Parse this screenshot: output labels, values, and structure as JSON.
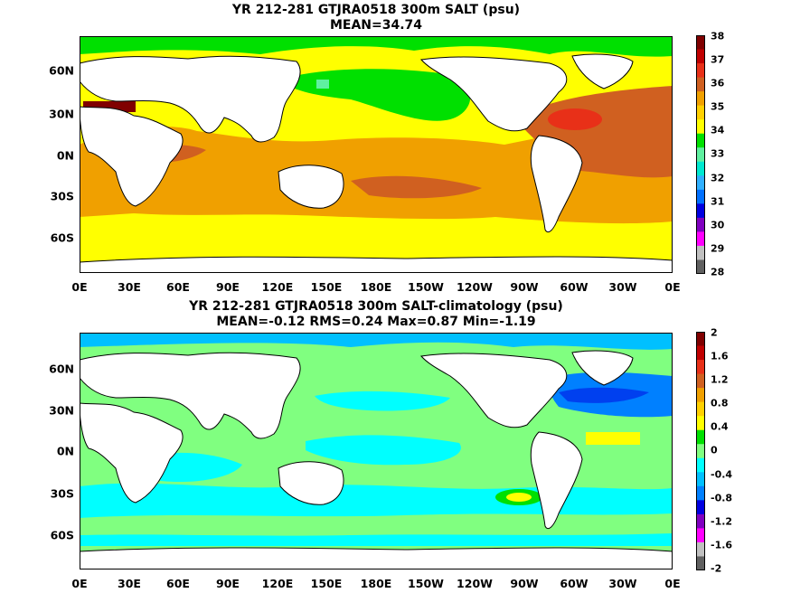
{
  "panels": [
    {
      "title_line1": "YR 212-281 GTJRA0518 300m SALT (psu)",
      "title_line2": "MEAN=34.74",
      "lat_labels": [
        "60N",
        "30N",
        "0N",
        "30S",
        "60S"
      ],
      "lon_labels": [
        "0E",
        "30E",
        "60E",
        "90E",
        "120E",
        "150E",
        "180E",
        "150W",
        "120W",
        "90W",
        "60W",
        "30W",
        "0E"
      ],
      "colorbar_labels": [
        "38",
        "37",
        "36",
        "35",
        "34",
        "33",
        "32",
        "31",
        "30",
        "29",
        "28"
      ],
      "colorbar_colors": [
        "#800000",
        "#c00000",
        "#e83018",
        "#d06020",
        "#f0a000",
        "#ffd000",
        "#ffff00",
        "#00e000",
        "#60f0a0",
        "#00e8d0",
        "#30b0ff",
        "#0070ff",
        "#0000e0",
        "#8000c0",
        "#ff00ff",
        "#c0c0c0",
        "#606060"
      ]
    },
    {
      "title_line1": "YR 212-281 GTJRA0518 300m SALT-climatology (psu)",
      "title_line2": "MEAN=-0.12   RMS=0.24   Max=0.87   Min=-1.19",
      "lat_labels": [
        "60N",
        "30N",
        "0N",
        "30S",
        "60S"
      ],
      "lon_labels": [
        "0E",
        "30E",
        "60E",
        "90E",
        "120E",
        "150E",
        "180E",
        "150W",
        "120W",
        "90W",
        "60W",
        "30W",
        "0E"
      ],
      "colorbar_labels": [
        "2",
        "1.6",
        "1.2",
        "0.8",
        "0.4",
        "0",
        "-0.4",
        "-0.8",
        "-1.2",
        "-1.6",
        "-2"
      ],
      "colorbar_colors": [
        "#800000",
        "#c00000",
        "#e83018",
        "#d06020",
        "#f0a000",
        "#ffd000",
        "#ffff00",
        "#00e000",
        "#80ff80",
        "#00ffff",
        "#00c0ff",
        "#0080ff",
        "#0000e0",
        "#8000c0",
        "#ff00ff",
        "#c0c0c0",
        "#606060"
      ]
    }
  ],
  "map_colors": {
    "top_background": "#ffff00",
    "top_orange": "#f0a000",
    "top_darkorange": "#d06020",
    "top_red": "#e83018",
    "top_darkred": "#800000",
    "top_green": "#00e000",
    "top_lightgreen": "#60f0a0",
    "bottom_background": "#80ff80",
    "bottom_cyan": "#00ffff",
    "bottom_skyblue": "#00c0ff",
    "bottom_blue": "#0080ff",
    "bottom_green": "#00e000",
    "bottom_yellow": "#ffff00",
    "land": "#ffffff"
  }
}
